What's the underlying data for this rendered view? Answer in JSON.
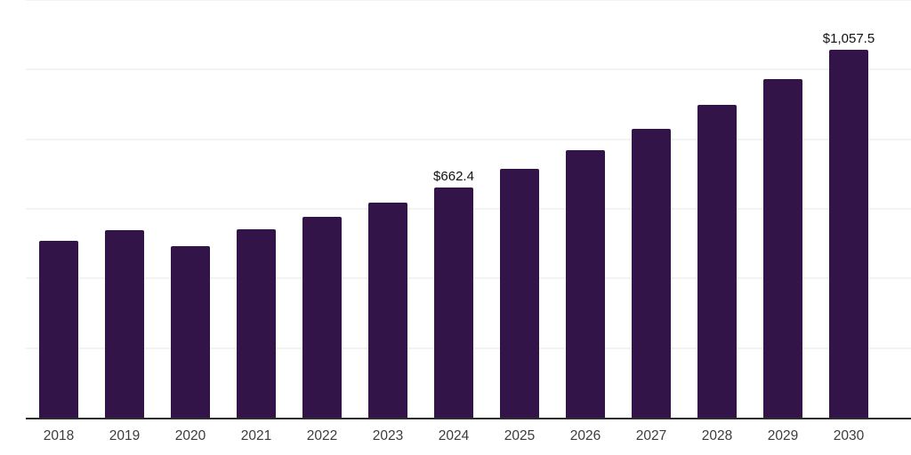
{
  "chart_data": {
    "type": "bar",
    "title": "",
    "xlabel": "",
    "ylabel": "",
    "categories": [
      "2018",
      "2019",
      "2020",
      "2021",
      "2022",
      "2023",
      "2024",
      "2025",
      "2026",
      "2027",
      "2028",
      "2029",
      "2030"
    ],
    "values": [
      509,
      539,
      494,
      541,
      577,
      618,
      662.4,
      716,
      769,
      830,
      898,
      974,
      1057.5
    ],
    "bar_labels": [
      "",
      "",
      "",
      "",
      "",
      "",
      "$662.4",
      "",
      "",
      "",
      "",
      "",
      "$1,057.5"
    ],
    "ylim": [
      0,
      1200
    ],
    "gridline_step": 200,
    "grid": "horizontal-only",
    "y_axis_labels": "none",
    "legend": "none",
    "colors": {
      "bar": "#331449",
      "axis_line": "#2e2e2e",
      "gridline": "#f3f3f5",
      "tick_label": "#3c3c3c",
      "data_label": "#111111",
      "background": "#ffffff"
    }
  }
}
